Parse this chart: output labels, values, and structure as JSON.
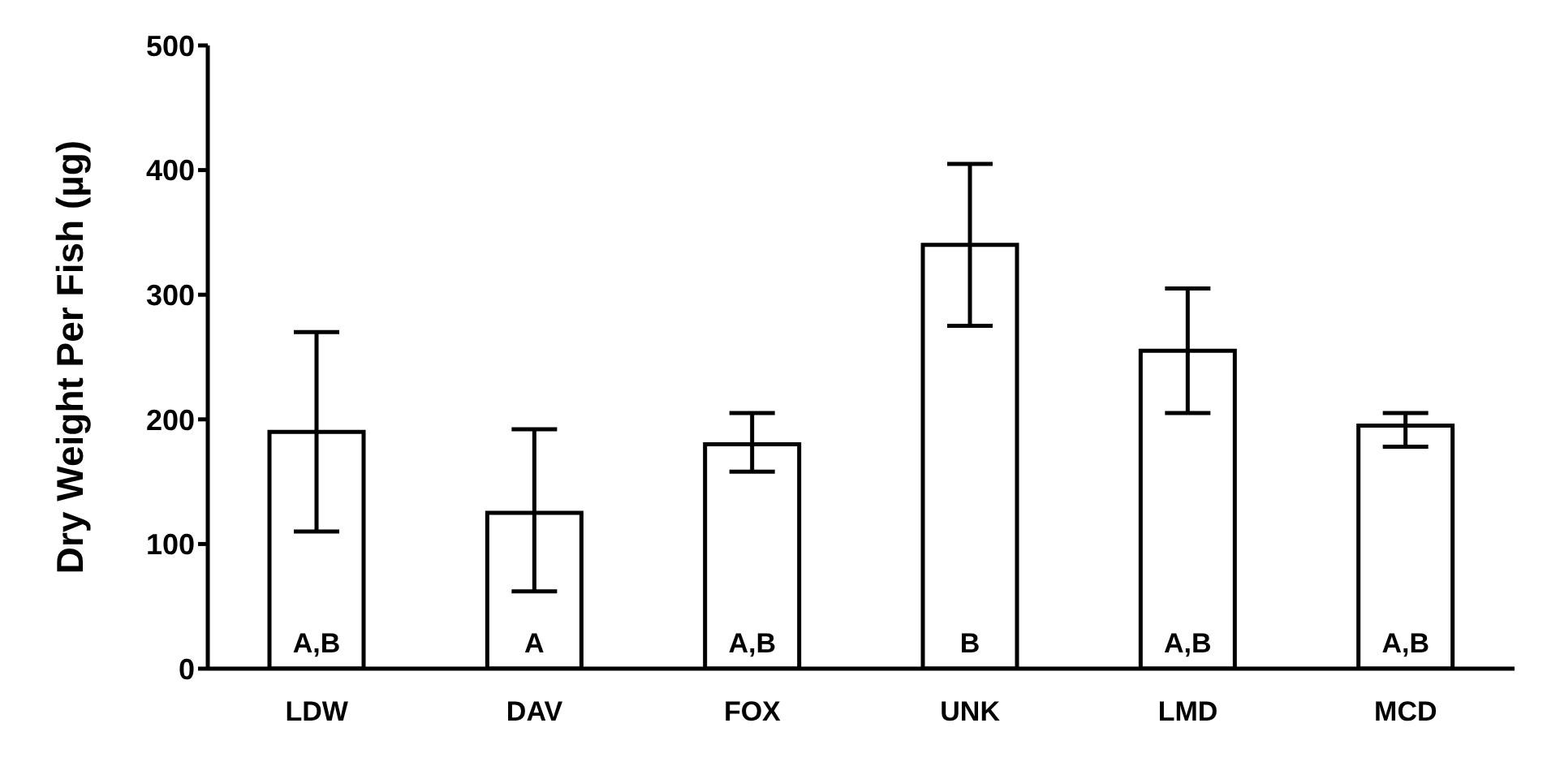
{
  "chart_data": {
    "type": "bar",
    "ylabel": "Dry Weight Per Fish (µg)",
    "categories": [
      "LDW",
      "DAV",
      "FOX",
      "UNK",
      "LMD",
      "MCD"
    ],
    "values": [
      190,
      125,
      180,
      340,
      255,
      195
    ],
    "errors": [
      [
        110,
        270
      ],
      [
        62,
        192
      ],
      [
        158,
        205
      ],
      [
        275,
        405
      ],
      [
        205,
        305
      ],
      [
        178,
        205
      ]
    ],
    "color": "#ffffff",
    "ylim": [
      0,
      500
    ],
    "yticks": [
      0,
      100,
      200,
      300,
      400,
      500
    ],
    "grid": false,
    "legend": false,
    "value_labels": [
      "A,B",
      "A",
      "A,B",
      "B",
      "A,B",
      "A,B"
    ]
  }
}
